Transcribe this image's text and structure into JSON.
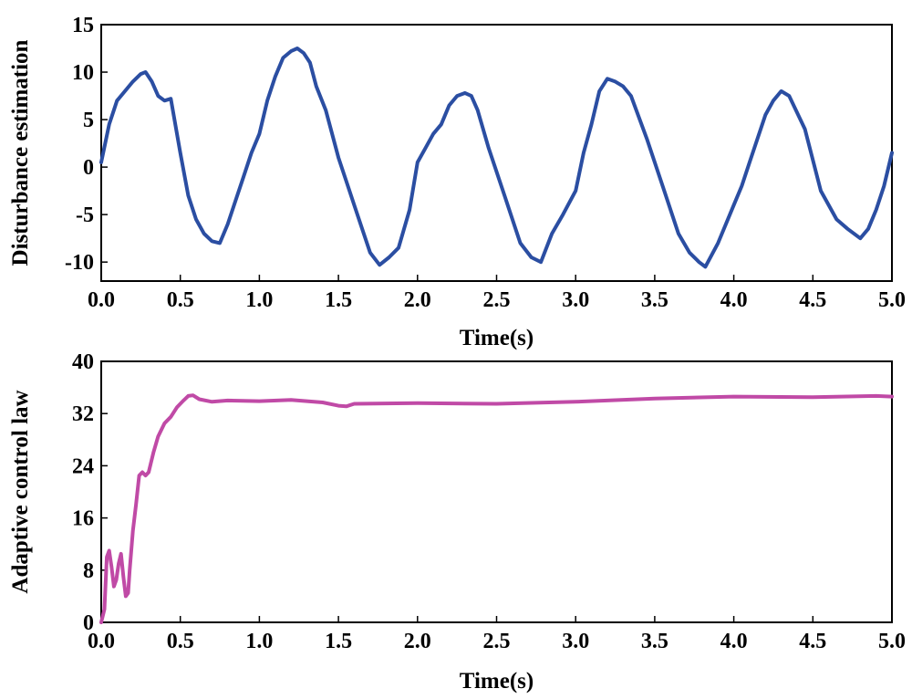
{
  "chart_data": [
    {
      "type": "line",
      "xlabel": "Time(s)",
      "ylabel": "Disturbance estimation",
      "xlim": [
        0,
        5
      ],
      "ylim": [
        -12,
        15
      ],
      "xticks": [
        "0.0",
        "0.5",
        "1.0",
        "1.5",
        "2.0",
        "2.5",
        "3.0",
        "3.5",
        "4.0",
        "4.5",
        "5.0"
      ],
      "yticks": [
        "-10",
        "-5",
        "0",
        "5",
        "10",
        "15"
      ],
      "series": [
        {
          "name": "Disturbance estimation",
          "color": "#2b4ea2",
          "x": [
            0.0,
            0.05,
            0.1,
            0.15,
            0.2,
            0.25,
            0.28,
            0.32,
            0.36,
            0.4,
            0.44,
            0.5,
            0.55,
            0.6,
            0.65,
            0.7,
            0.75,
            0.8,
            0.85,
            0.9,
            0.95,
            1.0,
            1.05,
            1.1,
            1.15,
            1.2,
            1.24,
            1.28,
            1.32,
            1.36,
            1.42,
            1.5,
            1.6,
            1.7,
            1.76,
            1.82,
            1.88,
            1.95,
            2.0,
            2.05,
            2.1,
            2.15,
            2.2,
            2.25,
            2.3,
            2.34,
            2.38,
            2.45,
            2.55,
            2.65,
            2.72,
            2.78,
            2.85,
            2.92,
            3.0,
            3.05,
            3.1,
            3.15,
            3.2,
            3.25,
            3.3,
            3.35,
            3.45,
            3.55,
            3.65,
            3.72,
            3.78,
            3.82,
            3.9,
            4.0,
            4.05,
            4.1,
            4.15,
            4.2,
            4.25,
            4.3,
            4.35,
            4.45,
            4.55,
            4.65,
            4.72,
            4.8,
            4.85,
            4.9,
            4.95,
            5.0
          ],
          "y": [
            0.5,
            4.5,
            7.0,
            8.0,
            9.0,
            9.8,
            10.0,
            9.0,
            7.5,
            7.0,
            7.2,
            1.5,
            -3.0,
            -5.5,
            -7.0,
            -7.8,
            -8.0,
            -6.0,
            -3.5,
            -1.0,
            1.5,
            3.5,
            7.0,
            9.5,
            11.5,
            12.2,
            12.5,
            12.0,
            11.0,
            8.5,
            6.0,
            1.0,
            -4.0,
            -9.0,
            -10.3,
            -9.5,
            -8.5,
            -4.5,
            0.5,
            2.0,
            3.5,
            4.5,
            6.5,
            7.5,
            7.8,
            7.5,
            6.0,
            2.0,
            -3.0,
            -8.0,
            -9.5,
            -10.0,
            -7.0,
            -5.0,
            -2.5,
            1.5,
            4.5,
            8.0,
            9.3,
            9.0,
            8.5,
            7.5,
            3.0,
            -2.0,
            -7.0,
            -9.0,
            -10.0,
            -10.5,
            -8.0,
            -4.0,
            -2.0,
            0.5,
            3.0,
            5.5,
            7.0,
            8.0,
            7.5,
            4.0,
            -2.5,
            -5.5,
            -6.5,
            -7.5,
            -6.5,
            -4.5,
            -2.0,
            1.5
          ]
        }
      ]
    },
    {
      "type": "line",
      "xlabel": "Time(s)",
      "ylabel": "Adaptive control law",
      "xlim": [
        0,
        5
      ],
      "ylim": [
        0,
        40
      ],
      "xticks": [
        "0.0",
        "0.5",
        "1.0",
        "1.5",
        "2.0",
        "2.5",
        "3.0",
        "3.5",
        "4.0",
        "4.5",
        "5.0"
      ],
      "yticks": [
        "0",
        "8",
        "16",
        "24",
        "32",
        "40"
      ],
      "series": [
        {
          "name": "Adaptive control law",
          "color": "#c04aa6",
          "x": [
            0.0,
            0.02,
            0.035,
            0.05,
            0.065,
            0.08,
            0.095,
            0.11,
            0.125,
            0.14,
            0.155,
            0.17,
            0.18,
            0.2,
            0.22,
            0.24,
            0.26,
            0.28,
            0.3,
            0.33,
            0.36,
            0.4,
            0.44,
            0.48,
            0.52,
            0.55,
            0.58,
            0.62,
            0.7,
            0.8,
            1.0,
            1.2,
            1.4,
            1.5,
            1.55,
            1.6,
            2.0,
            2.5,
            3.0,
            3.5,
            4.0,
            4.5,
            4.9,
            5.0
          ],
          "y": [
            0.0,
            2.0,
            10.0,
            11.0,
            8.5,
            5.5,
            6.5,
            9.0,
            10.5,
            7.0,
            4.0,
            4.5,
            8.0,
            14.0,
            18.0,
            22.5,
            23.0,
            22.5,
            23.0,
            26.0,
            28.5,
            30.5,
            31.5,
            33.0,
            34.0,
            34.7,
            34.8,
            34.2,
            33.8,
            34.0,
            33.9,
            34.1,
            33.7,
            33.2,
            33.1,
            33.5,
            33.6,
            33.5,
            33.8,
            34.3,
            34.6,
            34.5,
            34.7,
            34.6
          ]
        }
      ]
    }
  ]
}
